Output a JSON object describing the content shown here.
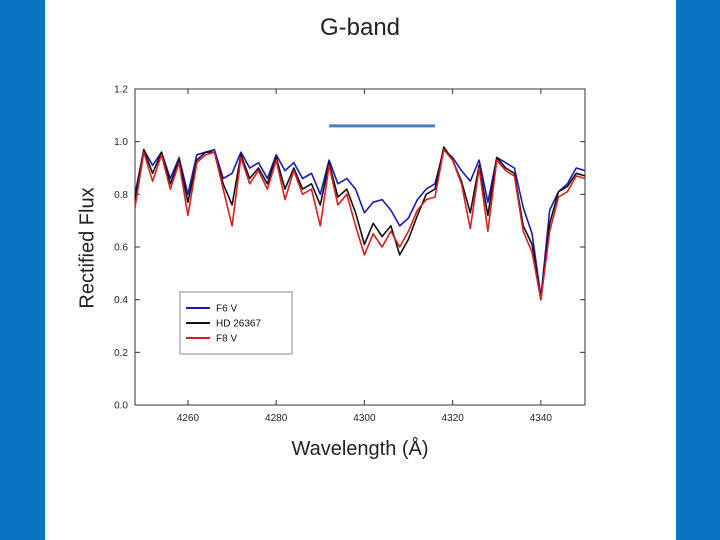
{
  "slide": {
    "accent_color": "#0A74C2"
  },
  "chart_data": {
    "type": "line",
    "title": "G-band",
    "xlabel": "Wavelength (Å)",
    "ylabel": "Rectified Flux",
    "xlim": [
      4248,
      4350
    ],
    "ylim": [
      0.0,
      1.2
    ],
    "xticks": [
      4260,
      4280,
      4300,
      4320,
      4340
    ],
    "yticks": [
      0.0,
      0.2,
      0.4,
      0.6,
      0.8,
      1.0,
      1.2
    ],
    "grid": false,
    "legend_position": "lower-left",
    "annotation_segment": {
      "x": [
        4292,
        4316
      ],
      "y": 1.06,
      "color": "#4A7DB5"
    },
    "series": [
      {
        "name": "F6 V",
        "color": "#1A1AB0",
        "x": [
          4248,
          4250,
          4252,
          4254,
          4256,
          4258,
          4260,
          4262,
          4264,
          4266,
          4268,
          4270,
          4272,
          4274,
          4276,
          4278,
          4280,
          4282,
          4284,
          4286,
          4288,
          4290,
          4292,
          4294,
          4296,
          4298,
          4300,
          4302,
          4304,
          4306,
          4308,
          4310,
          4312,
          4314,
          4316,
          4318,
          4320,
          4322,
          4324,
          4326,
          4328,
          4330,
          4332,
          4334,
          4336,
          4338,
          4340,
          4342,
          4344,
          4346,
          4348,
          4350
        ],
        "y": [
          0.8,
          0.97,
          0.91,
          0.96,
          0.86,
          0.94,
          0.8,
          0.95,
          0.96,
          0.97,
          0.86,
          0.88,
          0.96,
          0.9,
          0.92,
          0.86,
          0.95,
          0.89,
          0.92,
          0.86,
          0.88,
          0.8,
          0.93,
          0.84,
          0.86,
          0.82,
          0.73,
          0.77,
          0.78,
          0.74,
          0.68,
          0.71,
          0.78,
          0.82,
          0.84,
          0.97,
          0.94,
          0.89,
          0.85,
          0.93,
          0.77,
          0.94,
          0.92,
          0.9,
          0.75,
          0.65,
          0.41,
          0.74,
          0.81,
          0.84,
          0.9,
          0.89
        ]
      },
      {
        "name": "HD 26367",
        "color": "#111111",
        "x": [
          4248,
          4250,
          4252,
          4254,
          4256,
          4258,
          4260,
          4262,
          4264,
          4266,
          4268,
          4270,
          4272,
          4274,
          4276,
          4278,
          4280,
          4282,
          4284,
          4286,
          4288,
          4290,
          4292,
          4294,
          4296,
          4298,
          4300,
          4302,
          4304,
          4306,
          4308,
          4310,
          4312,
          4314,
          4316,
          4318,
          4320,
          4322,
          4324,
          4326,
          4328,
          4330,
          4332,
          4334,
          4336,
          4338,
          4340,
          4342,
          4344,
          4346,
          4348,
          4350
        ],
        "y": [
          0.78,
          0.97,
          0.88,
          0.96,
          0.84,
          0.93,
          0.77,
          0.93,
          0.96,
          0.96,
          0.84,
          0.76,
          0.95,
          0.86,
          0.9,
          0.84,
          0.94,
          0.82,
          0.9,
          0.82,
          0.84,
          0.76,
          0.92,
          0.79,
          0.82,
          0.73,
          0.61,
          0.69,
          0.64,
          0.68,
          0.57,
          0.63,
          0.72,
          0.8,
          0.82,
          0.98,
          0.93,
          0.85,
          0.73,
          0.91,
          0.72,
          0.94,
          0.9,
          0.88,
          0.68,
          0.61,
          0.4,
          0.69,
          0.81,
          0.83,
          0.88,
          0.87
        ]
      },
      {
        "name": "F8 V",
        "color": "#D62020",
        "x": [
          4248,
          4250,
          4252,
          4254,
          4256,
          4258,
          4260,
          4262,
          4264,
          4266,
          4268,
          4270,
          4272,
          4274,
          4276,
          4278,
          4280,
          4282,
          4284,
          4286,
          4288,
          4290,
          4292,
          4294,
          4296,
          4298,
          4300,
          4302,
          4304,
          4306,
          4308,
          4310,
          4312,
          4314,
          4316,
          4318,
          4320,
          4322,
          4324,
          4326,
          4328,
          4330,
          4332,
          4334,
          4336,
          4338,
          4340,
          4342,
          4344,
          4346,
          4348,
          4350
        ],
        "y": [
          0.75,
          0.96,
          0.85,
          0.95,
          0.82,
          0.92,
          0.72,
          0.92,
          0.95,
          0.96,
          0.82,
          0.68,
          0.94,
          0.84,
          0.89,
          0.82,
          0.93,
          0.78,
          0.89,
          0.8,
          0.82,
          0.68,
          0.91,
          0.76,
          0.8,
          0.68,
          0.57,
          0.65,
          0.6,
          0.66,
          0.6,
          0.66,
          0.74,
          0.78,
          0.79,
          0.97,
          0.93,
          0.84,
          0.67,
          0.9,
          0.66,
          0.93,
          0.89,
          0.87,
          0.66,
          0.58,
          0.4,
          0.66,
          0.79,
          0.81,
          0.87,
          0.86
        ]
      }
    ]
  }
}
